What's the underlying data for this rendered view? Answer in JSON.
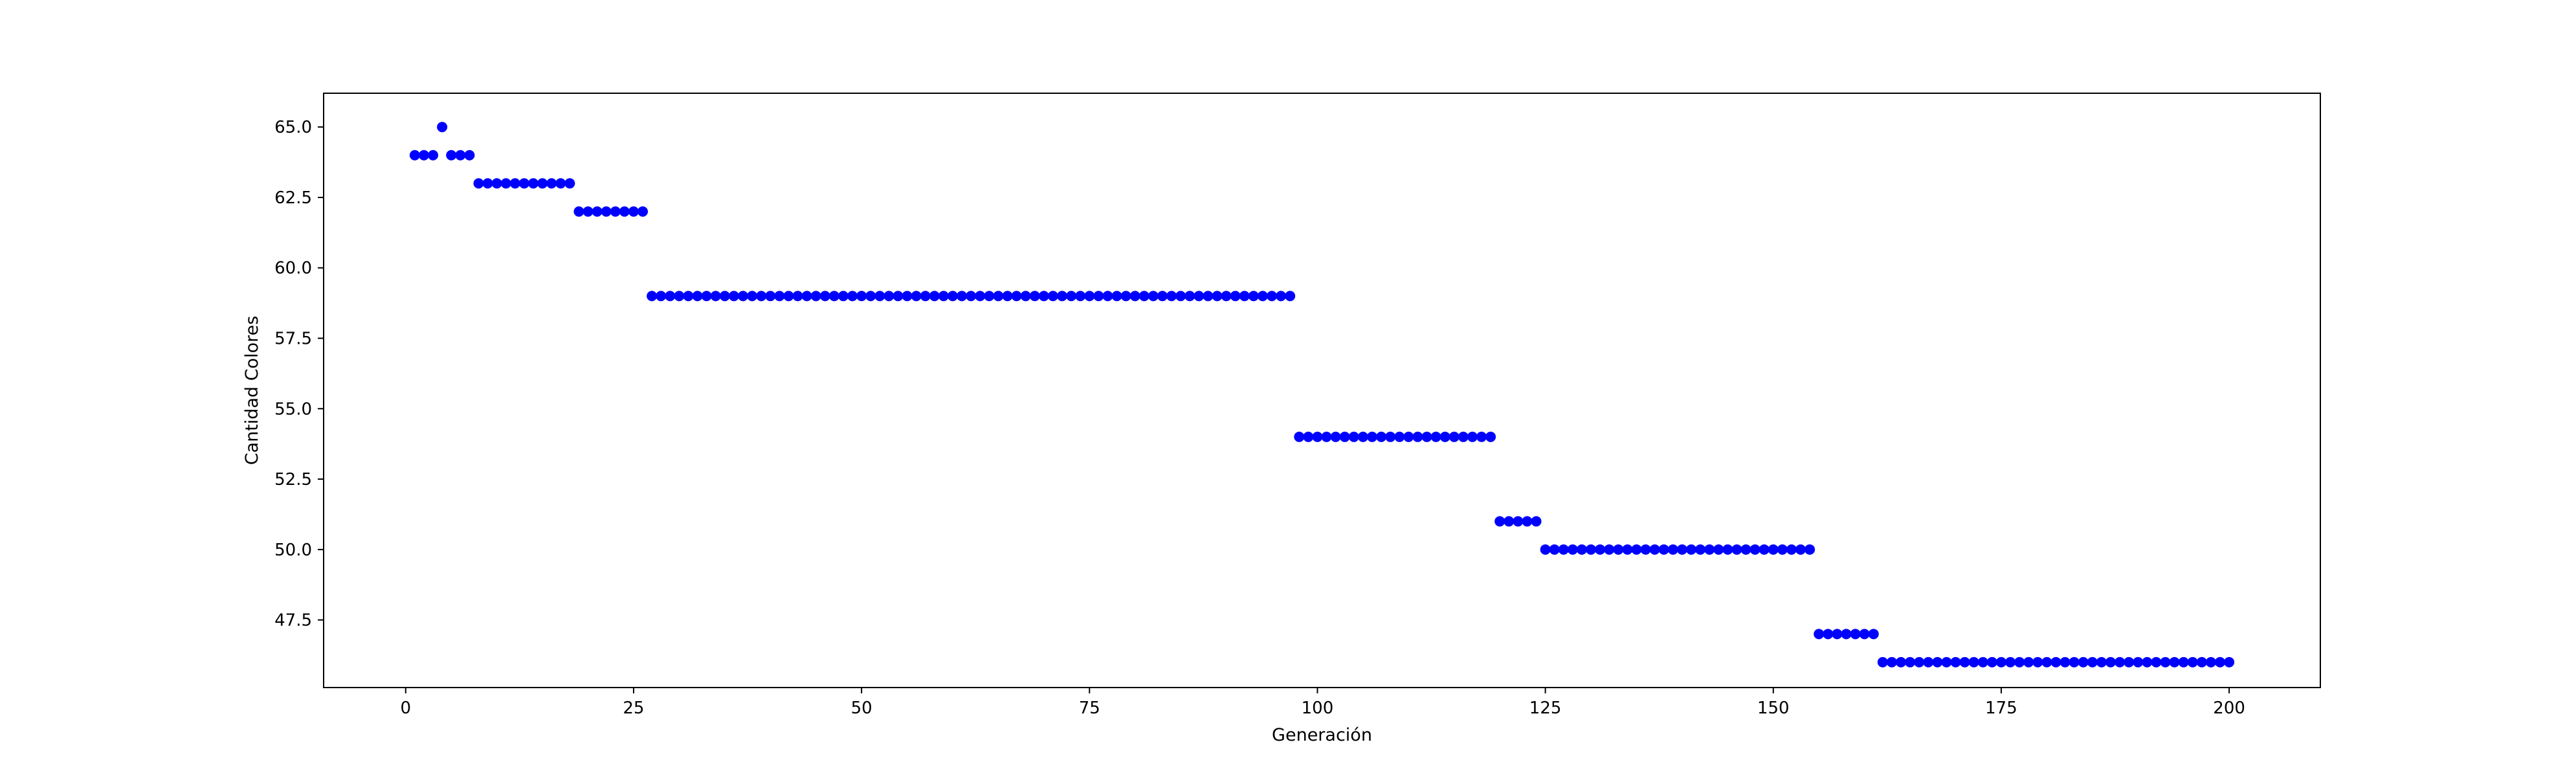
{
  "chart_data": {
    "type": "scatter",
    "title": "",
    "xlabel": "Generación",
    "ylabel": "Cantidad Colores",
    "xlim": [
      -9,
      210
    ],
    "ylim": [
      45.1,
      66.2
    ],
    "xticks": [
      0,
      25,
      50,
      75,
      100,
      125,
      150,
      175,
      200
    ],
    "xtick_labels": [
      "0",
      "25",
      "50",
      "75",
      "100",
      "125",
      "150",
      "175",
      "200"
    ],
    "yticks": [
      47.5,
      50.0,
      52.5,
      55.0,
      57.5,
      60.0,
      62.5,
      65.0
    ],
    "ytick_labels": [
      "47.5",
      "50.0",
      "52.5",
      "55.0",
      "57.5",
      "60.0",
      "62.5",
      "65.0"
    ],
    "grid": false,
    "legend": "none",
    "marker_color": "#0000ff",
    "series": [
      {
        "segments": [
          {
            "x_start": 1,
            "x_end": 3,
            "y": 64
          },
          {
            "x_start": 4,
            "x_end": 4,
            "y": 65
          },
          {
            "x_start": 5,
            "x_end": 7,
            "y": 64
          },
          {
            "x_start": 8,
            "x_end": 18,
            "y": 63
          },
          {
            "x_start": 19,
            "x_end": 26,
            "y": 62
          },
          {
            "x_start": 27,
            "x_end": 97,
            "y": 59
          },
          {
            "x_start": 98,
            "x_end": 119,
            "y": 54
          },
          {
            "x_start": 120,
            "x_end": 124,
            "y": 51
          },
          {
            "x_start": 125,
            "x_end": 154,
            "y": 50
          },
          {
            "x_start": 155,
            "x_end": 161,
            "y": 47
          },
          {
            "x_start": 162,
            "x_end": 200,
            "y": 46
          }
        ]
      }
    ]
  }
}
